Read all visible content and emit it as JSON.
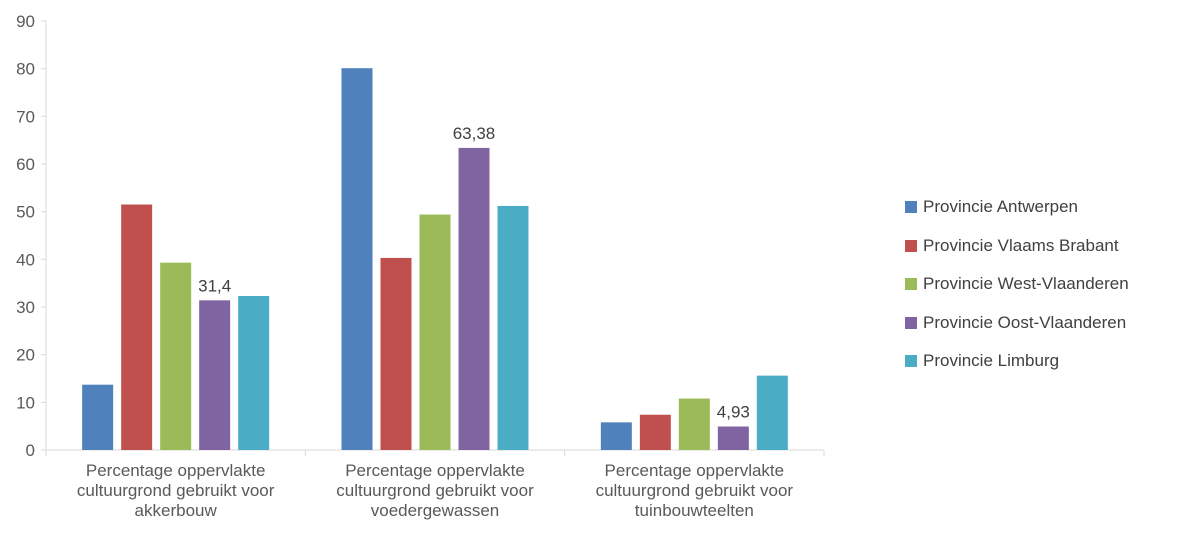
{
  "chart_data": {
    "type": "bar",
    "title": "",
    "xlabel": "",
    "ylabel": "",
    "ylim": [
      0,
      90
    ],
    "yticks": [
      0,
      10,
      20,
      30,
      40,
      50,
      60,
      70,
      80,
      90
    ],
    "grid": false,
    "legend_position": "right",
    "categories": [
      [
        "Percentage oppervlakte",
        "cultuurgrond gebruikt voor",
        "akkerbouw"
      ],
      [
        "Percentage oppervlakte",
        "cultuurgrond gebruikt voor",
        "voedergewassen"
      ],
      [
        "Percentage oppervlakte",
        "cultuurgrond gebruikt voor",
        "tuinbouwteelten"
      ]
    ],
    "series": [
      {
        "name": "Provincie Antwerpen",
        "color": "#4F81BD",
        "values": [
          13.7,
          80.1,
          5.8
        ]
      },
      {
        "name": "Provincie Vlaams Brabant",
        "color": "#C0504D",
        "values": [
          51.5,
          40.3,
          7.4
        ]
      },
      {
        "name": "Provincie West-Vlaanderen",
        "color": "#9BBB59",
        "values": [
          39.3,
          49.4,
          10.8
        ]
      },
      {
        "name": "Provincie Oost-Vlaanderen",
        "color": "#8064A2",
        "values": [
          31.4,
          63.38,
          4.93
        ]
      },
      {
        "name": "Provincie Limburg",
        "color": "#4BACC6",
        "values": [
          32.3,
          51.2,
          15.6
        ]
      }
    ],
    "data_labels": [
      {
        "series": 3,
        "category": 0,
        "text": "31,4"
      },
      {
        "series": 3,
        "category": 1,
        "text": "63,38"
      },
      {
        "series": 3,
        "category": 2,
        "text": "4,93"
      }
    ]
  }
}
